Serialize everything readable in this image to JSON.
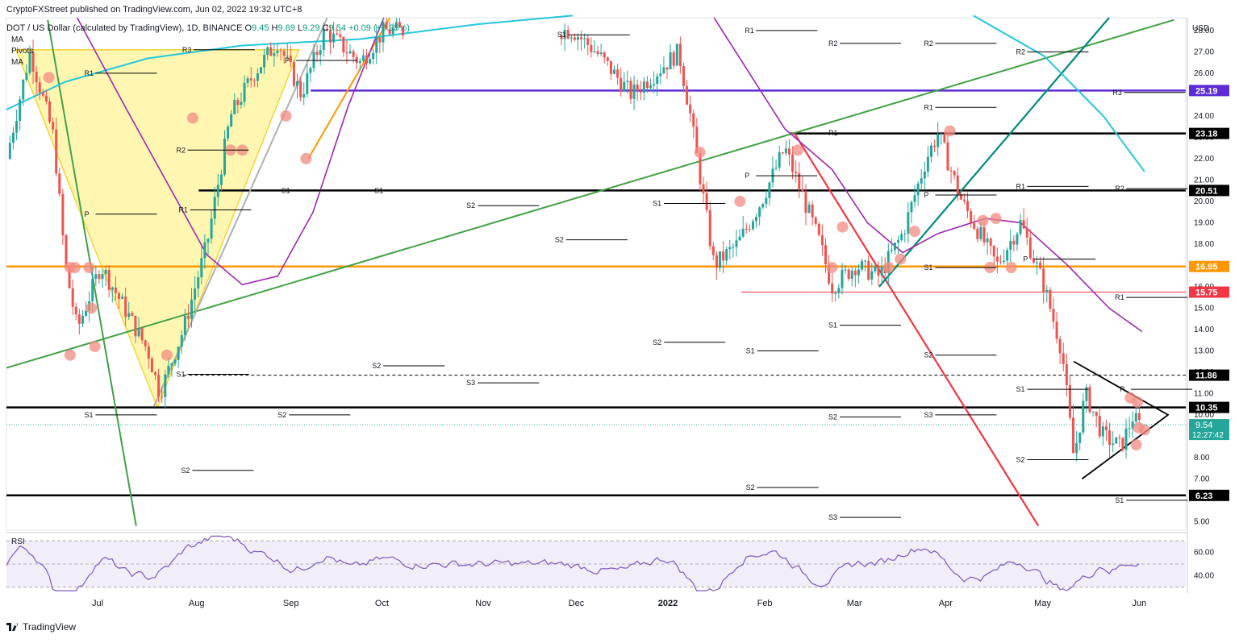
{
  "header": {
    "published_line": "CryptoFXStreet published on TradingView.com, Jun 02, 2022 19:32 UTC+8",
    "symbol_line_prefix": "DOT / US Dollar (calculated by TradingView), 1D, BINANCE",
    "ohlc": {
      "O": "9.45",
      "H": "9.69",
      "L": "9.29",
      "C": "9.54",
      "change": "+0.09",
      "change_pct": "(+0.95%)"
    },
    "indicators": [
      "MA",
      "Pivots",
      "MA"
    ]
  },
  "footer": {
    "brand": "TradingView"
  },
  "axis": {
    "currency": "USD"
  },
  "chart_data": {
    "type": "candlestick",
    "title": "DOT / US Dollar, 1D, BINANCE",
    "x_ticks": [
      "Jul",
      "Aug",
      "Sep",
      "Oct",
      "Nov",
      "Dec",
      "2022",
      "Feb",
      "Mar",
      "Apr",
      "May",
      "Jun"
    ],
    "y_ticks": [
      "28.00",
      "27.00",
      "26.00",
      "24.00",
      "23.00",
      "22.00",
      "21.00",
      "20.00",
      "19.00",
      "18.00",
      "17.00",
      "16.00",
      "15.00",
      "14.00",
      "13.00",
      "12.00",
      "11.00",
      "10.00",
      "8.00",
      "7.00",
      "5.00"
    ],
    "y_tick_values": [
      28,
      27,
      26,
      24,
      23,
      22,
      21,
      20,
      19,
      18,
      17,
      16,
      15,
      14,
      13,
      12,
      11,
      10,
      8,
      7,
      5
    ],
    "ylim": [
      4.6,
      28.6
    ],
    "ylim_scale": "linear",
    "price_labels": [
      {
        "value": 25.19,
        "label": "25.19",
        "color": "#5b2bd6"
      },
      {
        "value": 23.18,
        "label": "23.18",
        "color": "#000000"
      },
      {
        "value": 20.51,
        "label": "20.51",
        "color": "#000000"
      },
      {
        "value": 16.95,
        "label": "16.95",
        "color": "#ff9800"
      },
      {
        "value": 15.75,
        "label": "15.75",
        "color": "#f23645"
      },
      {
        "value": 11.86,
        "label": "11.86",
        "color": "#000000"
      },
      {
        "value": 10.35,
        "label": "10.35",
        "color": "#000000"
      },
      {
        "value": 6.23,
        "label": "6.23",
        "color": "#000000"
      }
    ],
    "last_price": {
      "value": 9.54,
      "label": "9.54",
      "countdown": "12:27:42",
      "color": "#26a69a"
    },
    "horizontal_levels": [
      {
        "value": 25.19,
        "color": "#5b2bd6",
        "style": "solid"
      },
      {
        "value": 23.18,
        "color": "#000000",
        "style": "solid"
      },
      {
        "value": 20.51,
        "color": "#000000",
        "style": "solid"
      },
      {
        "value": 16.95,
        "color": "#ff9800",
        "style": "solid"
      },
      {
        "value": 15.75,
        "color": "#f23645",
        "style": "thin"
      },
      {
        "value": 11.86,
        "color": "#000000",
        "style": "dashed"
      },
      {
        "value": 10.35,
        "color": "#000000",
        "style": "solid"
      },
      {
        "value": 6.23,
        "color": "#000000",
        "style": "solid"
      }
    ],
    "pivot_labels": [
      "R3",
      "R2",
      "R1",
      "P",
      "S1",
      "S2",
      "S3"
    ],
    "colors": {
      "up": "#26a69a",
      "down": "#ef5350",
      "ma_fast": "#9c27b0",
      "ma_slow": "#26c6da",
      "triangle_fill": "#fff59d",
      "circle": "#f28b82"
    },
    "rsi": {
      "label": "RSI",
      "ticks": [
        "60.00",
        "40.00"
      ],
      "tick_values": [
        60,
        40
      ],
      "upper": 70,
      "lower": 30,
      "ylim": [
        25,
        75
      ],
      "color": "#7e57c2"
    }
  }
}
